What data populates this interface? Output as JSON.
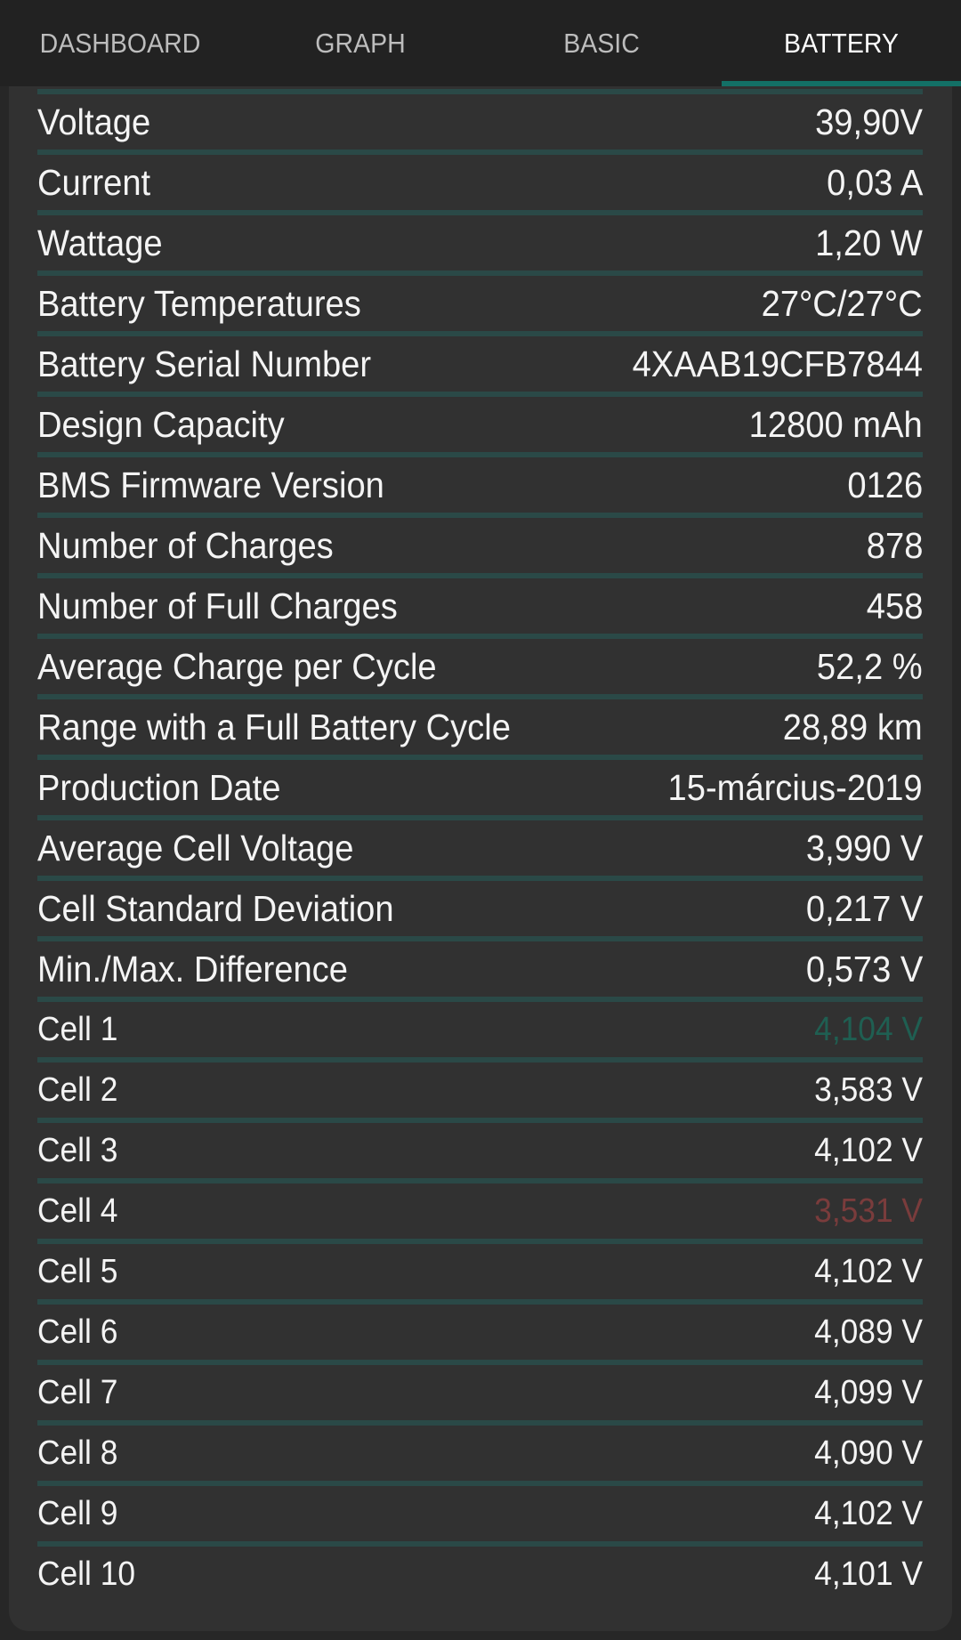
{
  "tabs": [
    {
      "label": "DASHBOARD",
      "active": false
    },
    {
      "label": "GRAPH",
      "active": false
    },
    {
      "label": "BASIC",
      "active": false
    },
    {
      "label": "BATTERY",
      "active": true
    }
  ],
  "colors": {
    "accent": "#137066",
    "separator": "#2a4947",
    "max_cell": "#1f5f52",
    "min_cell": "#7a3c3c"
  },
  "rows": [
    {
      "label": "Voltage",
      "value": "39,90V"
    },
    {
      "label": "Current",
      "value": "0,03 A"
    },
    {
      "label": "Wattage",
      "value": "1,20 W"
    },
    {
      "label": "Battery Temperatures",
      "value": "27°C/27°C"
    },
    {
      "label": "Battery Serial Number",
      "value": "4XAAB19CFB7844"
    },
    {
      "label": "Design Capacity",
      "value": "12800 mAh"
    },
    {
      "label": "BMS Firmware Version",
      "value": "0126"
    },
    {
      "label": "Number of Charges",
      "value": "878"
    },
    {
      "label": "Number of Full Charges",
      "value": "458"
    },
    {
      "label": "Average Charge per Cycle",
      "value": "52,2 %"
    },
    {
      "label": "Range with a Full Battery Cycle",
      "value": "28,89 km"
    },
    {
      "label": "Production Date",
      "value": "15-március-2019"
    },
    {
      "label": "Average Cell Voltage",
      "value": "3,990 V"
    },
    {
      "label": "Cell Standard Deviation",
      "value": "0,217 V"
    },
    {
      "label": "Min./Max. Difference",
      "value": "0,573 V"
    }
  ],
  "cells": [
    {
      "label": "Cell 1",
      "value": "4,104 V",
      "status": "max"
    },
    {
      "label": "Cell 2",
      "value": "3,583 V",
      "status": "normal"
    },
    {
      "label": "Cell 3",
      "value": "4,102 V",
      "status": "normal"
    },
    {
      "label": "Cell 4",
      "value": "3,531 V",
      "status": "min"
    },
    {
      "label": "Cell 5",
      "value": "4,102 V",
      "status": "normal"
    },
    {
      "label": "Cell 6",
      "value": "4,089 V",
      "status": "normal"
    },
    {
      "label": "Cell 7",
      "value": "4,099 V",
      "status": "normal"
    },
    {
      "label": "Cell 8",
      "value": "4,090 V",
      "status": "normal"
    },
    {
      "label": "Cell 9",
      "value": "4,102 V",
      "status": "normal"
    },
    {
      "label": "Cell 10",
      "value": "4,101 V",
      "status": "normal"
    }
  ]
}
